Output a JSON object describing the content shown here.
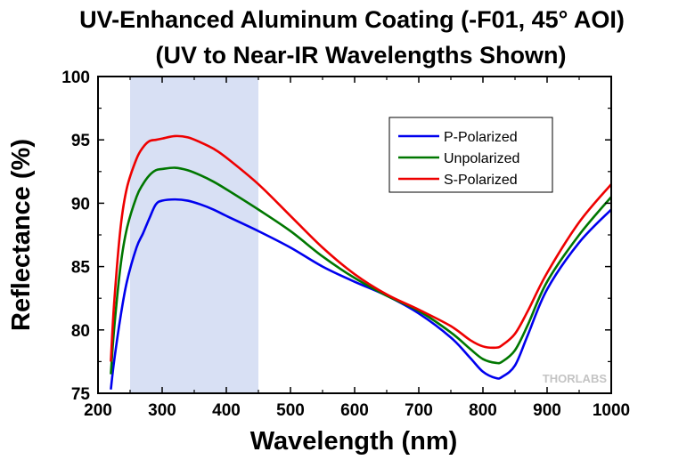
{
  "chart_data": {
    "type": "line",
    "title": "UV-Enhanced Aluminum Coating (-F01, 45° AOI)",
    "subtitle": "(UV to Near-IR Wavelengths Shown)",
    "xlabel": "Wavelength (nm)",
    "ylabel": "Reflectance (%)",
    "xlim": [
      200,
      1000
    ],
    "ylim": [
      75,
      100
    ],
    "xticks": [
      200,
      300,
      400,
      500,
      600,
      700,
      800,
      900,
      1000
    ],
    "yticks": [
      75,
      80,
      85,
      90,
      95,
      100
    ],
    "grid": false,
    "legend_position": "top-right",
    "highlight_band": {
      "x": [
        250,
        450
      ],
      "color": "#d8e0f4"
    },
    "watermark": "THORLABS",
    "series": [
      {
        "name": "P-Polarized",
        "color": "#0000ee",
        "x": [
          220,
          225,
          235,
          245,
          260,
          270,
          280,
          290,
          300,
          320,
          340,
          360,
          380,
          400,
          450,
          500,
          550,
          600,
          650,
          700,
          750,
          780,
          800,
          820,
          830,
          850,
          870,
          900,
          950,
          1000
        ],
        "y": [
          75.3,
          77.5,
          81.0,
          83.8,
          86.5,
          87.6,
          88.8,
          89.9,
          90.2,
          90.3,
          90.2,
          89.9,
          89.5,
          89.0,
          87.8,
          86.5,
          85.0,
          83.8,
          82.7,
          81.3,
          79.4,
          77.8,
          76.7,
          76.2,
          76.3,
          77.2,
          79.6,
          83.2,
          86.9,
          89.5
        ]
      },
      {
        "name": "Unpolarized",
        "color": "#007700",
        "x": [
          220,
          225,
          235,
          245,
          260,
          270,
          280,
          290,
          300,
          320,
          340,
          360,
          380,
          400,
          450,
          500,
          550,
          600,
          650,
          700,
          750,
          780,
          800,
          820,
          830,
          850,
          870,
          900,
          950,
          1000
        ],
        "y": [
          76.5,
          80.0,
          85.0,
          88.0,
          90.5,
          91.5,
          92.2,
          92.6,
          92.7,
          92.8,
          92.6,
          92.2,
          91.7,
          91.1,
          89.5,
          87.8,
          85.8,
          84.1,
          82.7,
          81.5,
          79.8,
          78.5,
          77.7,
          77.4,
          77.5,
          78.4,
          80.4,
          83.8,
          87.5,
          90.5
        ]
      },
      {
        "name": "S-Polarized",
        "color": "#ee0000",
        "x": [
          220,
          225,
          235,
          245,
          260,
          270,
          280,
          290,
          300,
          320,
          340,
          360,
          380,
          400,
          450,
          500,
          550,
          600,
          650,
          700,
          750,
          780,
          800,
          820,
          830,
          850,
          870,
          900,
          950,
          1000
        ],
        "y": [
          77.5,
          82.0,
          88.0,
          91.2,
          93.5,
          94.4,
          94.9,
          95.0,
          95.1,
          95.3,
          95.2,
          94.8,
          94.3,
          93.6,
          91.5,
          89.0,
          86.5,
          84.4,
          82.8,
          81.6,
          80.3,
          79.2,
          78.7,
          78.6,
          78.8,
          79.7,
          81.5,
          84.5,
          88.5,
          91.5
        ]
      }
    ]
  }
}
